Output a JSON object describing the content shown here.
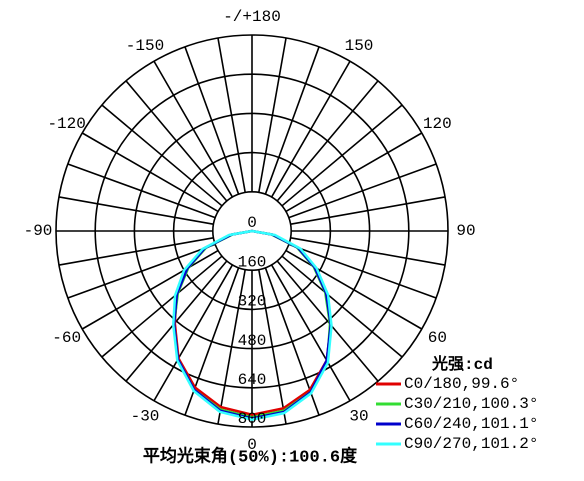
{
  "chart_data": {
    "type": "polar",
    "caption": "平均光束角(50%):100.6度",
    "legend_title": "光强:cd",
    "rlim": [
      0,
      800
    ],
    "rticks": [
      0,
      160,
      320,
      480,
      640,
      800
    ],
    "thetaticks": [
      {
        "value": 180,
        "label": "-/+180"
      },
      150,
      120,
      90,
      60,
      30,
      0,
      -30,
      -60,
      -90,
      -120,
      -150
    ],
    "theta": [
      -90,
      -80,
      -70,
      -60,
      -50,
      -40,
      -30,
      -20,
      -10,
      0,
      10,
      20,
      30,
      40,
      50,
      60,
      70,
      80,
      90
    ],
    "series": [
      {
        "name": "C0/180,99.6°",
        "color": "#e00000",
        "values": [
          0,
          90,
          210,
          310,
          400,
          490,
          600,
          680,
          730,
          750,
          735,
          690,
          610,
          500,
          400,
          300,
          200,
          85,
          0
        ]
      },
      {
        "name": "C30/210,100.3°",
        "color": "#33dd33",
        "values": [
          0,
          80,
          200,
          300,
          395,
          495,
          605,
          690,
          740,
          760,
          745,
          700,
          615,
          495,
          390,
          290,
          195,
          80,
          0
        ]
      },
      {
        "name": "C60/240,101.1°",
        "color": "#0000cc",
        "values": [
          0,
          85,
          205,
          305,
          400,
          495,
          605,
          690,
          745,
          765,
          750,
          700,
          610,
          500,
          395,
          295,
          200,
          85,
          0
        ]
      },
      {
        "name": "C90/270,101.2°",
        "color": "#33ffff",
        "values": [
          0,
          95,
          215,
          320,
          410,
          500,
          610,
          695,
          750,
          770,
          755,
          705,
          620,
          505,
          405,
          305,
          210,
          95,
          0
        ]
      }
    ]
  }
}
